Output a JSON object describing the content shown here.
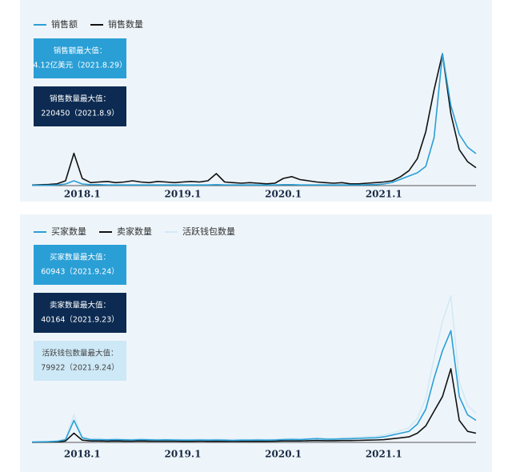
{
  "chart_data": [
    {
      "type": "line",
      "categories": [
        null,
        null,
        null,
        null,
        null,
        null,
        "2018.1",
        null,
        null,
        null,
        null,
        null,
        null,
        null,
        null,
        null,
        null,
        null,
        "2019.1",
        null,
        null,
        null,
        null,
        null,
        null,
        null,
        null,
        null,
        null,
        null,
        "2020.1",
        null,
        null,
        null,
        null,
        null,
        null,
        null,
        null,
        null,
        null,
        null,
        "2021.1",
        null,
        null,
        null,
        null,
        null,
        null,
        null,
        null,
        null,
        null,
        null
      ],
      "ylim": [
        0,
        4.3
      ],
      "y2lim": [
        0,
        230000
      ],
      "series": [
        {
          "name": "销售额",
          "color": "#2a9fd6",
          "values": [
            0.01,
            0.01,
            0.01,
            0.02,
            0.05,
            0.15,
            0.05,
            0.03,
            0.03,
            0.02,
            0.02,
            0.02,
            0.02,
            0.02,
            0.02,
            0.02,
            0.02,
            0.02,
            0.02,
            0.02,
            0.02,
            0.02,
            0.03,
            0.02,
            0.02,
            0.02,
            0.02,
            0.02,
            0.02,
            0.02,
            0.03,
            0.03,
            0.02,
            0.02,
            0.02,
            0.02,
            0.02,
            0.02,
            0.02,
            0.02,
            0.03,
            0.03,
            0.05,
            0.1,
            0.2,
            0.3,
            0.4,
            0.6,
            1.5,
            4.12,
            2.5,
            1.6,
            1.2,
            1.0
          ]
        },
        {
          "name": "销售数量",
          "color": "#111111",
          "axis": "y2",
          "values": [
            1000,
            1500,
            2000,
            3000,
            8000,
            54000,
            12000,
            5000,
            6000,
            7000,
            5000,
            6000,
            8000,
            6000,
            5000,
            7000,
            6000,
            5000,
            6000,
            7000,
            6000,
            8000,
            20000,
            6000,
            5000,
            4000,
            5000,
            4000,
            3000,
            4000,
            12000,
            15000,
            10000,
            8000,
            6000,
            5000,
            4000,
            5000,
            3000,
            3000,
            4000,
            5000,
            6000,
            8000,
            15000,
            25000,
            45000,
            90000,
            160000,
            220450,
            120000,
            60000,
            40000,
            30000
          ]
        }
      ],
      "annotations": [
        {
          "color": "#2a9fd6",
          "text_color": "#ffffff",
          "lines": [
            "销售额最大值：",
            "4.12亿美元（2021.8.29）"
          ]
        },
        {
          "color": "#0d2b52",
          "text_color": "#ffffff",
          "lines": [
            "销售数量最大值：",
            "220450（2021.8.9）"
          ]
        }
      ]
    },
    {
      "type": "line",
      "categories": [
        null,
        null,
        null,
        null,
        null,
        null,
        "2018.1",
        null,
        null,
        null,
        null,
        null,
        null,
        null,
        null,
        null,
        null,
        null,
        "2019.1",
        null,
        null,
        null,
        null,
        null,
        null,
        null,
        null,
        null,
        null,
        null,
        "2020.1",
        null,
        null,
        null,
        null,
        null,
        null,
        null,
        null,
        null,
        null,
        null,
        "2021.1",
        null,
        null,
        null,
        null,
        null,
        null,
        null,
        null,
        null,
        null,
        null
      ],
      "ylim": [
        0,
        82000
      ],
      "series": [
        {
          "name": "买家数量",
          "color": "#2a9fd6",
          "values": [
            200,
            300,
            400,
            600,
            1500,
            12000,
            2500,
            1500,
            1500,
            1400,
            1500,
            1400,
            1300,
            1500,
            1400,
            1300,
            1400,
            1300,
            1200,
            1200,
            1300,
            1200,
            1300,
            1200,
            1100,
            1200,
            1200,
            1300,
            1200,
            1300,
            1500,
            1600,
            1500,
            1800,
            2000,
            1800,
            1700,
            1900,
            2000,
            2200,
            2400,
            2500,
            3000,
            4000,
            5000,
            6000,
            10000,
            18000,
            35000,
            50000,
            60943,
            25000,
            15000,
            12000
          ]
        },
        {
          "name": "卖家数量",
          "color": "#111111",
          "values": [
            100,
            150,
            200,
            300,
            800,
            5000,
            1200,
            800,
            800,
            700,
            800,
            700,
            700,
            800,
            700,
            700,
            700,
            700,
            600,
            600,
            700,
            600,
            700,
            600,
            600,
            600,
            600,
            700,
            600,
            700,
            800,
            800,
            800,
            900,
            1000,
            900,
            900,
            1000,
            1000,
            1100,
            1200,
            1300,
            1500,
            2000,
            2500,
            3000,
            5000,
            9000,
            17000,
            25000,
            40164,
            12000,
            6000,
            5000
          ]
        },
        {
          "name": "活跃钱包数量",
          "color": "#d3e9f5",
          "values": [
            300,
            400,
            500,
            800,
            2000,
            15000,
            3200,
            2000,
            2000,
            1800,
            2000,
            1800,
            1700,
            2000,
            1800,
            1700,
            1800,
            1700,
            1600,
            1600,
            1700,
            1600,
            1700,
            1600,
            1500,
            1600,
            1600,
            1700,
            1600,
            1700,
            2000,
            2100,
            2000,
            2300,
            2600,
            2300,
            2200,
            2500,
            2600,
            2900,
            3100,
            3300,
            4000,
            5200,
            6500,
            8000,
            13000,
            24000,
            46000,
            66000,
            79922,
            33000,
            20000,
            16000
          ]
        }
      ],
      "annotations": [
        {
          "color": "#2a9fd6",
          "text_color": "#ffffff",
          "lines": [
            "买家数量最大值：",
            "60943（2021.9.24）"
          ]
        },
        {
          "color": "#0d2b52",
          "text_color": "#ffffff",
          "lines": [
            "卖家数量最大值：",
            "40164（2021.9.23）"
          ]
        },
        {
          "color": "#cde8f6",
          "text_color": "#444444",
          "lines": [
            "活跃钱包数量最大值：",
            "79922（2021.9.24）"
          ]
        }
      ]
    }
  ]
}
